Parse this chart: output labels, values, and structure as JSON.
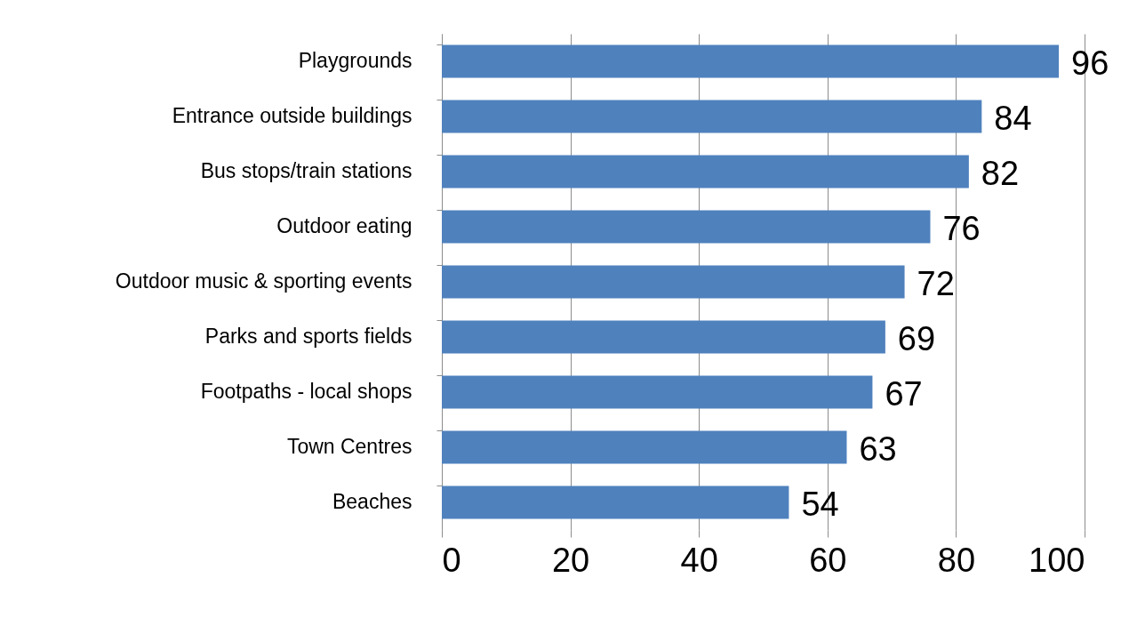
{
  "chart_data": {
    "type": "bar",
    "orientation": "horizontal",
    "categories": [
      "Playgrounds",
      "Entrance outside buildings",
      "Bus stops/train stations",
      "Outdoor eating",
      "Outdoor music & sporting events",
      "Parks and sports fields",
      "Footpaths - local shops",
      "Town Centres",
      "Beaches"
    ],
    "values": [
      96,
      84,
      82,
      76,
      72,
      69,
      67,
      63,
      54
    ],
    "color": "#4f81bd",
    "xlim": [
      0,
      100
    ],
    "xticks": [
      0,
      20,
      40,
      60,
      80,
      100
    ],
    "grid": "x",
    "data_labels": true
  }
}
